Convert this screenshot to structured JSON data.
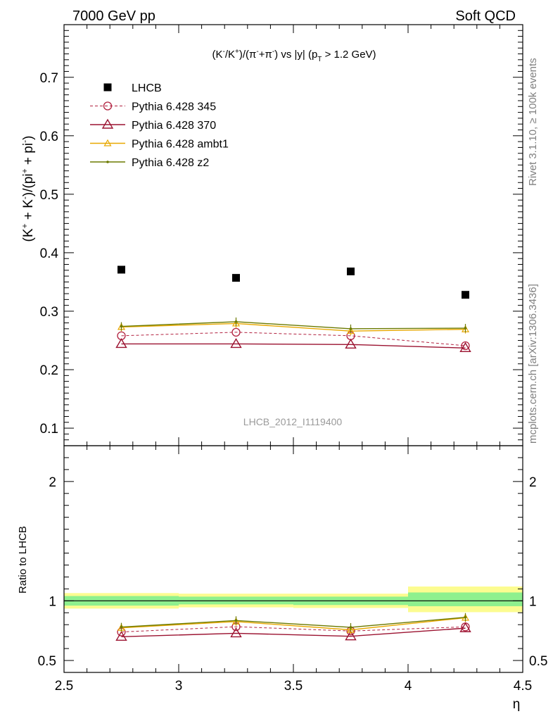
{
  "header": {
    "left": "7000 GeV pp",
    "right": "Soft QCD"
  },
  "plot_title": "(K-/K+)/(π-+π-) vs |y| (pT > 1.2 GeV)",
  "side_text": {
    "rivet": "Rivet 3.1.10, ≥ 100k events",
    "mcplots": "mcplots.cern.ch [arXiv:1306.3436]"
  },
  "watermark": "LHCB_2012_I1119400",
  "colors": {
    "lhcb": "#000000",
    "p345": "#b22240",
    "p370": "#9b1230",
    "ambt1": "#e8a800",
    "z2": "#6b7a00",
    "band_inner": "#8ef08e",
    "band_outer": "#fcfc90"
  },
  "chart_data": [
    {
      "type": "scatter",
      "ylabel": "(K+ + K-)/(pi+ + pi-)",
      "xlim": [
        2.5,
        4.5
      ],
      "ylim": [
        0.07,
        0.79
      ],
      "yticks": [
        "0.1",
        "0.2",
        "0.3",
        "0.4",
        "0.5",
        "0.6",
        "0.7"
      ],
      "x": [
        2.75,
        3.25,
        3.75,
        4.25
      ],
      "series": [
        {
          "name": "LHCB",
          "values": [
            0.371,
            0.357,
            0.368,
            0.328
          ]
        },
        {
          "name": "Pythia 6.428 345",
          "values": [
            0.258,
            0.264,
            0.258,
            0.241
          ]
        },
        {
          "name": "Pythia 6.428 370",
          "values": [
            0.244,
            0.244,
            0.243,
            0.237
          ]
        },
        {
          "name": "Pythia 6.428 ambt1",
          "values": [
            0.273,
            0.279,
            0.266,
            0.269
          ]
        },
        {
          "name": "Pythia 6.428 z2",
          "values": [
            0.274,
            0.282,
            0.27,
            0.271
          ]
        }
      ]
    },
    {
      "type": "line",
      "ylabel": "Ratio to LHCB",
      "xlabel": "η",
      "xlim": [
        2.5,
        4.5
      ],
      "ylim": [
        0.4,
        2.3
      ],
      "xticks": [
        "2.5",
        "3",
        "3.5",
        "4",
        "4.5"
      ],
      "yticks": [
        "0.5",
        "1",
        "2"
      ],
      "bins": [
        [
          2.5,
          3.0
        ],
        [
          3.0,
          3.5
        ],
        [
          3.5,
          4.0
        ],
        [
          4.0,
          4.5
        ]
      ],
      "band_inner": [
        [
          0.96,
          1.04
        ],
        [
          0.97,
          1.035
        ],
        [
          0.965,
          1.035
        ],
        [
          0.955,
          1.07
        ]
      ],
      "band_outer": [
        [
          0.935,
          1.065
        ],
        [
          0.945,
          1.06
        ],
        [
          0.94,
          1.06
        ],
        [
          0.905,
          1.12
        ]
      ],
      "series": [
        {
          "name": "Pythia 6.428 345",
          "values": [
            0.739,
            0.783,
            0.747,
            0.782
          ]
        },
        {
          "name": "Pythia 6.428 370",
          "values": [
            0.699,
            0.728,
            0.703,
            0.771
          ]
        },
        {
          "name": "Pythia 6.428 ambt1",
          "values": [
            0.774,
            0.826,
            0.757,
            0.858
          ]
        },
        {
          "name": "Pythia 6.428 z2",
          "values": [
            0.78,
            0.835,
            0.778,
            0.862
          ]
        }
      ]
    }
  ]
}
